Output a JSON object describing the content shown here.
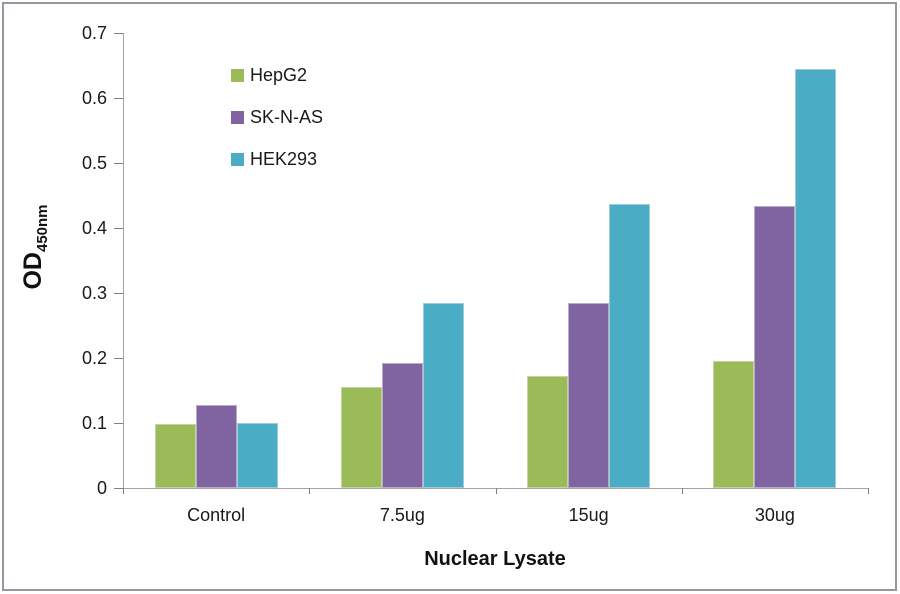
{
  "chart_data": {
    "type": "bar",
    "categories": [
      "Control",
      "7.5ug",
      "15ug",
      "30ug"
    ],
    "series": [
      {
        "name": "HepG2",
        "color": "#9BBB59",
        "values": [
          0.099,
          0.155,
          0.173,
          0.196
        ]
      },
      {
        "name": "SK-N-AS",
        "color": "#8064A2",
        "values": [
          0.128,
          0.193,
          0.284,
          0.434
        ]
      },
      {
        "name": "HEK293",
        "color": "#4BACC6",
        "values": [
          0.1,
          0.284,
          0.437,
          0.645
        ]
      }
    ],
    "xlabel": "Nuclear Lysate",
    "ylabel_main": "OD",
    "ylabel_sub": "450nm",
    "ylim": [
      0,
      0.7
    ],
    "ytick_labels": [
      "0",
      "0.1",
      "0.2",
      "0.3",
      "0.4",
      "0.5",
      "0.6",
      "0.7"
    ],
    "grid": false,
    "legend_position": "upper-left-inside"
  },
  "style": {
    "axis_color": "#a6a6a6",
    "tick_color": "#7f7f7f",
    "text_color": "#1a1a1a",
    "frame_color": "#97979f",
    "background": "#ffffff"
  }
}
